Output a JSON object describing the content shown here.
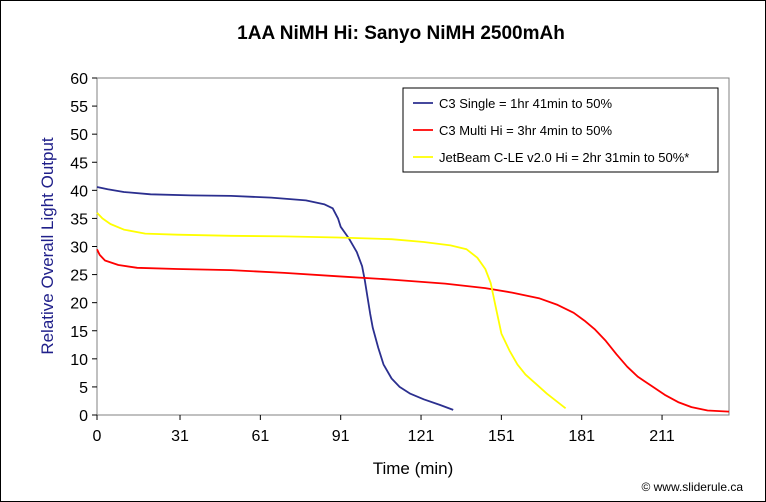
{
  "chart_data": {
    "type": "line",
    "title": "1AA NiMH Hi: Sanyo NiMH 2500mAh",
    "xlabel": "Time (min)",
    "ylabel": "Relative Overall Light Output",
    "xlim": [
      0,
      236
    ],
    "ylim": [
      0,
      60
    ],
    "xticks": [
      0,
      31,
      61,
      91,
      121,
      151,
      181,
      211
    ],
    "yticks": [
      0,
      5,
      10,
      15,
      20,
      25,
      30,
      35,
      40,
      45,
      50,
      55,
      60
    ],
    "grid": false,
    "legend_position": "top-right",
    "series": [
      {
        "name": "C3 Single = 1hr 41min to 50%",
        "color": "#2b2f8f",
        "points": [
          [
            0,
            40.6
          ],
          [
            4,
            40.2
          ],
          [
            10,
            39.7
          ],
          [
            20,
            39.3
          ],
          [
            35,
            39.1
          ],
          [
            50,
            39.0
          ],
          [
            65,
            38.7
          ],
          [
            78,
            38.2
          ],
          [
            85,
            37.5
          ],
          [
            88,
            36.8
          ],
          [
            90,
            35.0
          ],
          [
            91,
            33.5
          ],
          [
            94,
            31.5
          ],
          [
            97,
            29.0
          ],
          [
            99,
            26.5
          ],
          [
            100,
            24.0
          ],
          [
            101,
            21.0
          ],
          [
            102,
            18.0
          ],
          [
            103,
            15.5
          ],
          [
            105,
            12.0
          ],
          [
            107,
            9.0
          ],
          [
            110,
            6.5
          ],
          [
            113,
            5.0
          ],
          [
            117,
            3.8
          ],
          [
            122,
            2.8
          ],
          [
            128,
            1.8
          ],
          [
            133,
            0.9
          ]
        ]
      },
      {
        "name": "C3 Multi Hi = 3hr 4min to 50%",
        "color": "#ff0000",
        "points": [
          [
            0,
            29.5
          ],
          [
            1,
            28.5
          ],
          [
            3,
            27.5
          ],
          [
            8,
            26.7
          ],
          [
            15,
            26.2
          ],
          [
            30,
            26.0
          ],
          [
            50,
            25.8
          ],
          [
            70,
            25.3
          ],
          [
            90,
            24.7
          ],
          [
            110,
            24.1
          ],
          [
            130,
            23.4
          ],
          [
            145,
            22.6
          ],
          [
            155,
            21.8
          ],
          [
            165,
            20.8
          ],
          [
            172,
            19.6
          ],
          [
            178,
            18.2
          ],
          [
            182,
            16.8
          ],
          [
            186,
            15.2
          ],
          [
            190,
            13.2
          ],
          [
            194,
            10.8
          ],
          [
            198,
            8.6
          ],
          [
            202,
            6.8
          ],
          [
            207,
            5.2
          ],
          [
            212,
            3.6
          ],
          [
            217,
            2.3
          ],
          [
            222,
            1.4
          ],
          [
            228,
            0.8
          ],
          [
            236,
            0.6
          ]
        ]
      },
      {
        "name": "JetBeam C-LE v2.0 Hi = 2hr 31min to 50%*",
        "color": "#ffff00",
        "points": [
          [
            0,
            36.0
          ],
          [
            2,
            35.0
          ],
          [
            5,
            34.0
          ],
          [
            10,
            33.0
          ],
          [
            18,
            32.3
          ],
          [
            30,
            32.1
          ],
          [
            50,
            31.9
          ],
          [
            70,
            31.8
          ],
          [
            90,
            31.6
          ],
          [
            110,
            31.3
          ],
          [
            122,
            30.8
          ],
          [
            132,
            30.2
          ],
          [
            138,
            29.5
          ],
          [
            142,
            28.0
          ],
          [
            145,
            26.0
          ],
          [
            147,
            23.5
          ],
          [
            149,
            19.0
          ],
          [
            151,
            14.5
          ],
          [
            154,
            11.5
          ],
          [
            157,
            9.0
          ],
          [
            160,
            7.2
          ],
          [
            164,
            5.5
          ],
          [
            168,
            3.8
          ],
          [
            172,
            2.3
          ],
          [
            175,
            1.2
          ]
        ]
      }
    ]
  },
  "credit": "© www.sliderule.ca"
}
